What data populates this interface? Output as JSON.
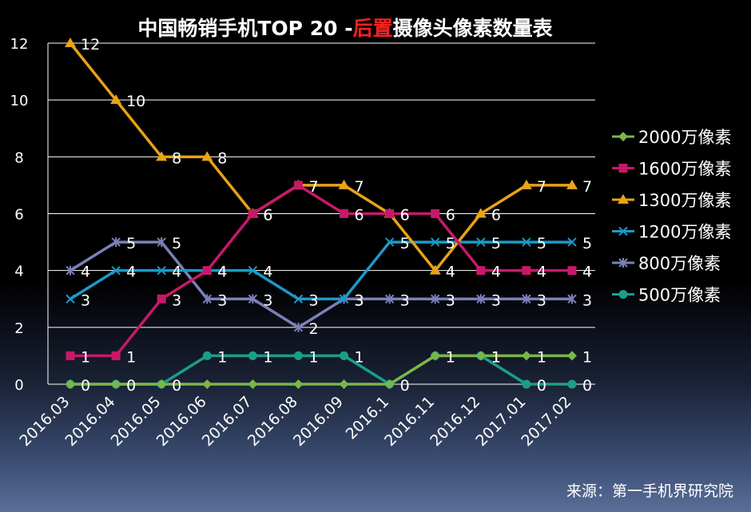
{
  "chart_data": {
    "type": "line",
    "title_main": "中国畅销手机TOP 20 -",
    "title_highlight": "后置",
    "title_rest": "摄像头像素数量表",
    "categories": [
      "2016.03",
      "2016.04",
      "2016.05",
      "2016.06",
      "2016.07",
      "2016.08",
      "2016.09",
      "2016.1",
      "2016.11",
      "2016.12",
      "2017.01",
      "2017.02"
    ],
    "ylim": [
      0,
      12
    ],
    "yticks": [
      0,
      2,
      4,
      6,
      8,
      10,
      12
    ],
    "series": [
      {
        "name": "2000万像素",
        "color": "#7ab648",
        "marker": "diamond",
        "values": [
          0,
          0,
          0,
          0,
          0,
          0,
          0,
          0,
          1,
          1,
          1,
          1
        ]
      },
      {
        "name": "1600万像素",
        "color": "#c8186a",
        "marker": "square",
        "values": [
          1,
          1,
          3,
          4,
          6,
          7,
          6,
          6,
          6,
          4,
          4,
          4
        ]
      },
      {
        "name": "1300万像素",
        "color": "#e8a317",
        "marker": "triangle",
        "values": [
          12,
          10,
          8,
          8,
          6,
          7,
          7,
          6,
          4,
          6,
          7,
          7
        ]
      },
      {
        "name": "1200万像素",
        "color": "#1a9ac9",
        "marker": "x",
        "values": [
          3,
          4,
          4,
          4,
          4,
          3,
          3,
          5,
          5,
          5,
          5,
          5
        ]
      },
      {
        "name": "800万像素",
        "color": "#7a80b8",
        "marker": "star",
        "values": [
          4,
          5,
          5,
          3,
          3,
          2,
          3,
          3,
          3,
          3,
          3,
          3
        ]
      },
      {
        "name": "500万像素",
        "color": "#1a9e8a",
        "marker": "circle",
        "values": [
          0,
          0,
          0,
          1,
          1,
          1,
          1,
          0,
          1,
          1,
          0,
          0
        ]
      }
    ],
    "data_labels": {
      "2000万像素": [
        null,
        null,
        null,
        null,
        null,
        null,
        null,
        null,
        1,
        1,
        1,
        1
      ],
      "1600万像素": [
        1,
        1,
        3,
        4,
        6,
        7,
        6,
        6,
        6,
        4,
        4,
        4
      ],
      "1300万像素": [
        12,
        10,
        8,
        8,
        6,
        7,
        7,
        6,
        4,
        6,
        7,
        7
      ],
      "1200万像素": [
        3,
        4,
        4,
        4,
        4,
        3,
        3,
        5,
        5,
        5,
        5,
        5
      ],
      "800万像素": [
        4,
        5,
        5,
        3,
        3,
        2,
        3,
        3,
        3,
        3,
        3,
        3
      ],
      "500万像素": [
        0,
        0,
        0,
        1,
        1,
        1,
        1,
        0,
        1,
        1,
        0,
        0
      ]
    }
  },
  "credit": "来源：第一手机界研究院"
}
